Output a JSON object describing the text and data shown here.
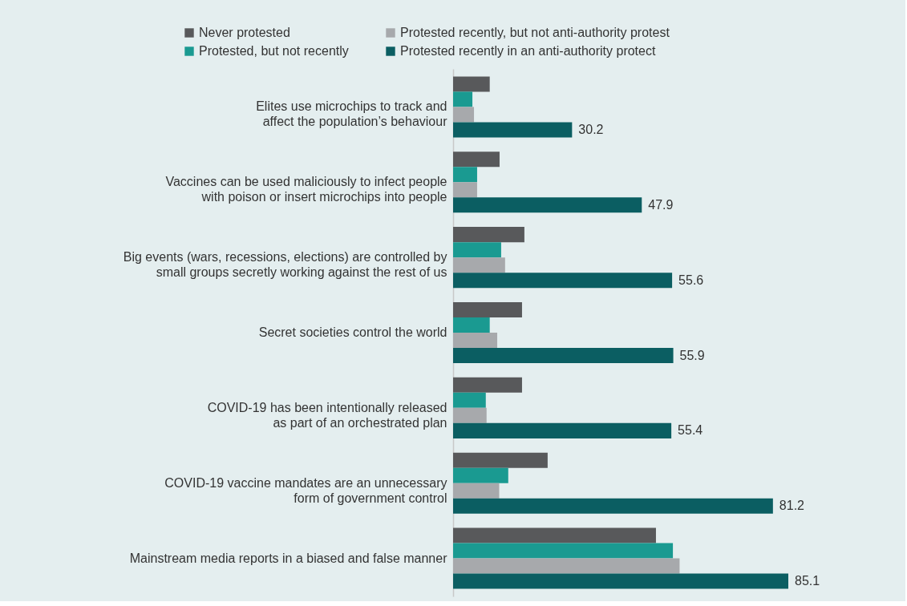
{
  "chart_data": {
    "type": "bar",
    "orientation": "horizontal",
    "legend": "top",
    "categories": [
      "Elites use microchips to track and\naffect the population’s behaviour",
      "Vaccines can be used maliciously to infect people\nwith poison or insert microchips into people",
      "Big events (wars, recessions, elections) are controlled by\nsmall groups secretly working against the rest of us",
      "Secret societies control the world",
      "COVID-19 has been intentionally released\nas part of an orchestrated plan",
      "COVID-19 vaccine mandates are an unnecessary\nform of government control",
      "Mainstream media reports in a biased and false manner"
    ],
    "series": [
      {
        "name": "Never protested",
        "color": "#58595b",
        "values": [
          9.3,
          11.8,
          18.1,
          17.5,
          17.5,
          24.0,
          51.5
        ]
      },
      {
        "name": "Protested, but not recently",
        "color": "#1a9a91",
        "values": [
          4.9,
          6.1,
          12.2,
          9.3,
          8.3,
          14.0,
          55.8
        ]
      },
      {
        "name": "Protested recently, but not anti-authority protest",
        "color": "#a7a9ac",
        "values": [
          5.3,
          6.1,
          13.2,
          11.2,
          8.5,
          11.7,
          57.5
        ]
      },
      {
        "name": "Protested recently in an anti-authority protect",
        "color": "#0b5e62",
        "values": [
          30.2,
          47.9,
          55.6,
          55.9,
          55.4,
          81.2,
          85.1
        ],
        "value_labels": [
          "30.2",
          "47.9",
          "55.6",
          "55.9",
          "55.4",
          "81.2",
          "85.1"
        ]
      }
    ]
  }
}
